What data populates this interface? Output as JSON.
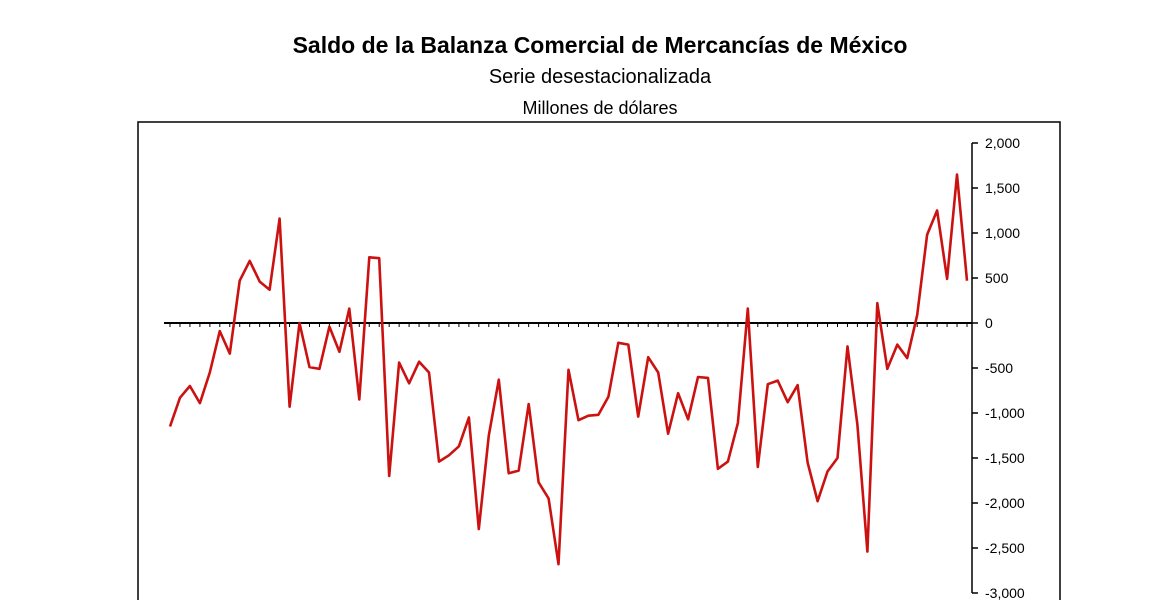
{
  "chart_data": {
    "type": "line",
    "title": "Saldo de la Balanza Comercial de Mercancías de México",
    "subtitle": "Serie desestacionalizada",
    "units": "Millones de dólares",
    "y_axis_position": "right",
    "ylim": [
      -3000,
      2000
    ],
    "yticks": [
      2000,
      1500,
      1000,
      500,
      0,
      -500,
      -1000,
      -1500,
      -2000,
      -2500,
      -3000
    ],
    "ytick_labels": [
      "2,000",
      "1,500",
      "1,000",
      "500",
      "0",
      "-500",
      "-1,000",
      "-1,500",
      "-2,000",
      "-2,500",
      "-3,000"
    ],
    "zero_line": true,
    "grid": false,
    "line_color": "#cc1111",
    "series": [
      {
        "values": [
          -1150,
          -830,
          -700,
          -890,
          -550,
          -90,
          -340,
          470,
          690,
          460,
          370,
          1160,
          -930,
          0,
          -490,
          -510,
          -40,
          -320,
          160,
          -850,
          730,
          720,
          -1700,
          -440,
          -670,
          -430,
          -550,
          -1540,
          -1470,
          -1370,
          -1050,
          -2290,
          -1250,
          -630,
          -1670,
          -1640,
          -900,
          -1770,
          -1950,
          -2680,
          -520,
          -1080,
          -1030,
          -1020,
          -820,
          -220,
          -240,
          -1040,
          -380,
          -550,
          -1230,
          -780,
          -1070,
          -600,
          -610,
          -1620,
          -1540,
          -1110,
          160,
          -1600,
          -680,
          -640,
          -880,
          -690,
          -1550,
          -1980,
          -1650,
          -1500,
          -260,
          -1130,
          -2540,
          220,
          -510,
          -240,
          -390,
          90,
          980,
          1250,
          490,
          1650,
          470
        ]
      }
    ]
  }
}
